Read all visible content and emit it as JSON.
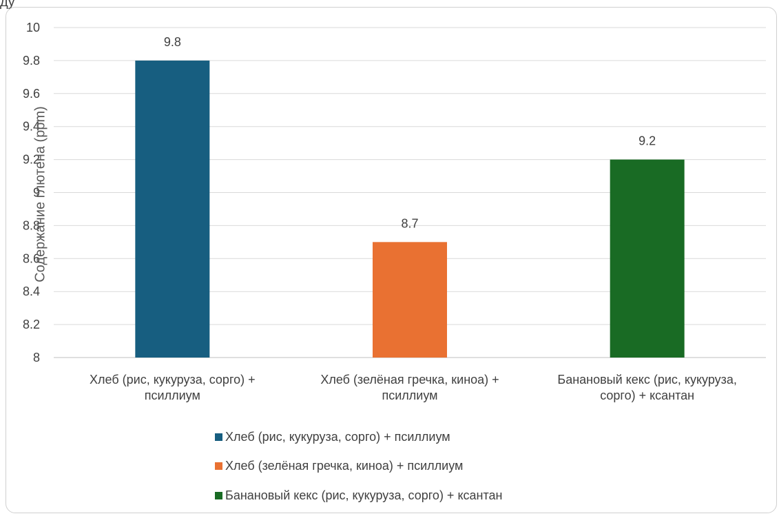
{
  "chart_data": {
    "type": "bar",
    "categories": [
      "Хлеб (рис, кукуруза, сорго) + псиллиум",
      "Хлеб (зелёная гречка, киноа) + псиллиум",
      "Банановый кекс (рис, кукуруза, сорго) + ксантан"
    ],
    "category_lines": [
      [
        "Хлеб (рис, кукуруза, сорго) +",
        "псиллиум"
      ],
      [
        "Хлеб (зелёная гречка, киноа) +",
        "псиллиум"
      ],
      [
        "Банановый кекс (рис, кукуруза,",
        "сорго) + ксантан"
      ]
    ],
    "values": [
      9.8,
      8.7,
      9.2
    ],
    "data_labels": [
      "9.8",
      "8.7",
      "9.2"
    ],
    "colors": [
      "#175e80",
      "#e97132",
      "#196b24"
    ],
    "ylabel": "Содержание глютена (ppm)",
    "ylim": [
      8,
      10
    ],
    "yticks": [
      "8",
      "8.2",
      "8.4",
      "8.6",
      "8.8",
      "9",
      "9.2",
      "9.4",
      "9.6",
      "9.8",
      "10"
    ],
    "grid": true,
    "legend": {
      "placement": "bottom",
      "entries": [
        "Хлеб (рис, кукуруза, сорго) + псиллиум",
        "Хлеб (зелёная гречка, киноа) + псиллиум",
        "Банановый кекс (рис, кукуруза, сорго) + ксантан"
      ]
    }
  },
  "stub_text": "ду"
}
